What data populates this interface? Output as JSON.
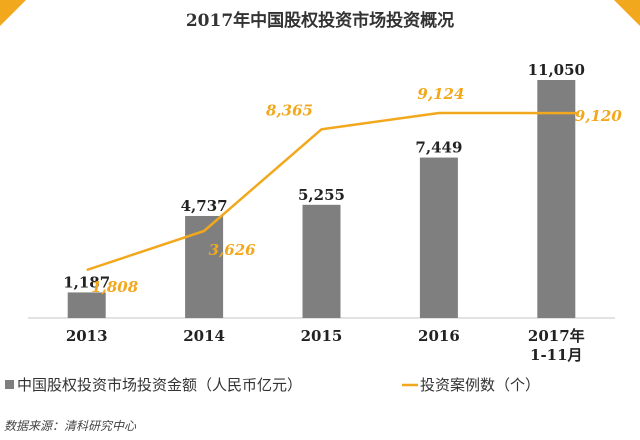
{
  "chart_data": {
    "type": "bar",
    "title": "2017年中国股权投资市场投资概况",
    "categories": [
      "2013",
      "2014",
      "2015",
      "2016",
      "2017年|1-11月"
    ],
    "series": [
      {
        "name": "中国股权投资市场投资金额（人民币亿元）",
        "type": "bar",
        "values": [
          1187,
          4737,
          5255,
          7449,
          11050
        ],
        "labels": [
          "1,187",
          "4,737",
          "5,255",
          "7,449",
          "11,050"
        ],
        "color": "#7f7f7f"
      },
      {
        "name": "投资案例数（个）",
        "type": "line",
        "values": [
          1808,
          3626,
          8365,
          9124,
          9120
        ],
        "labels": [
          "1,808",
          "3,626",
          "8,365",
          "9,124",
          "9,120"
        ],
        "color": "#f2a81d"
      }
    ],
    "grid": false,
    "legend": "bottom"
  },
  "source": "数据来源：清科研究中心",
  "colors": {
    "accent": "#f2a81d",
    "bar": "#7f7f7f",
    "axis": "#d9d9d9"
  }
}
